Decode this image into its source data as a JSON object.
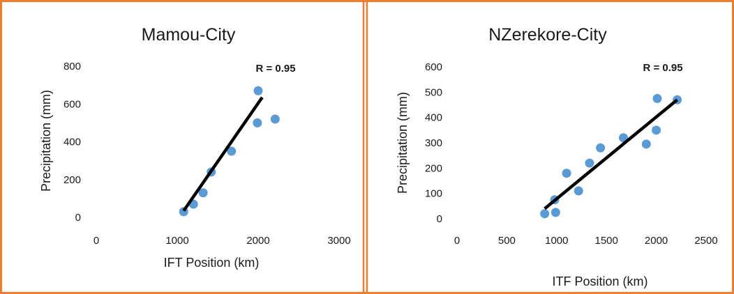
{
  "colors": {
    "border": "#ed7d31",
    "marker": "#5b9bd5",
    "trendline": "#000000"
  },
  "chart_data": [
    {
      "type": "scatter",
      "title": "Mamou-City",
      "xlabel": "IFT Position (km)",
      "ylabel": "Precipitation (mm)",
      "annotation": "R = 0.95",
      "xlim": [
        0,
        3000
      ],
      "ylim": [
        0,
        800
      ],
      "xticks": [
        "0",
        "1000",
        "2000",
        "3000"
      ],
      "yticks": [
        "0",
        "200",
        "400",
        "600",
        "800"
      ],
      "points": [
        {
          "x": 1080,
          "y": 30
        },
        {
          "x": 1200,
          "y": 70
        },
        {
          "x": 1320,
          "y": 130
        },
        {
          "x": 1420,
          "y": 240
        },
        {
          "x": 1670,
          "y": 350
        },
        {
          "x": 1990,
          "y": 500
        },
        {
          "x": 2000,
          "y": 670
        },
        {
          "x": 2210,
          "y": 520
        }
      ],
      "trendline": [
        {
          "x": 1080,
          "y": 35
        },
        {
          "x": 2050,
          "y": 635
        }
      ],
      "grid": false,
      "legend": "none"
    },
    {
      "type": "scatter",
      "title": "NZerekore-City",
      "xlabel": "ITF Position (km)",
      "ylabel": "Precipitation (mm)",
      "annotation": "R = 0.95",
      "xlim": [
        0,
        2500
      ],
      "ylim": [
        0,
        600
      ],
      "xticks": [
        "0",
        "500",
        "1000",
        "1500",
        "2000",
        "2500"
      ],
      "yticks": [
        "0",
        "100",
        "200",
        "300",
        "400",
        "500",
        "600"
      ],
      "points": [
        {
          "x": 880,
          "y": 20
        },
        {
          "x": 980,
          "y": 75
        },
        {
          "x": 990,
          "y": 25
        },
        {
          "x": 1100,
          "y": 180
        },
        {
          "x": 1220,
          "y": 110
        },
        {
          "x": 1330,
          "y": 220
        },
        {
          "x": 1440,
          "y": 280
        },
        {
          "x": 1670,
          "y": 320
        },
        {
          "x": 1900,
          "y": 295
        },
        {
          "x": 2000,
          "y": 350
        },
        {
          "x": 2010,
          "y": 475
        },
        {
          "x": 2210,
          "y": 470
        }
      ],
      "trendline": [
        {
          "x": 880,
          "y": 40
        },
        {
          "x": 2210,
          "y": 470
        }
      ],
      "grid": false,
      "legend": "none"
    }
  ]
}
